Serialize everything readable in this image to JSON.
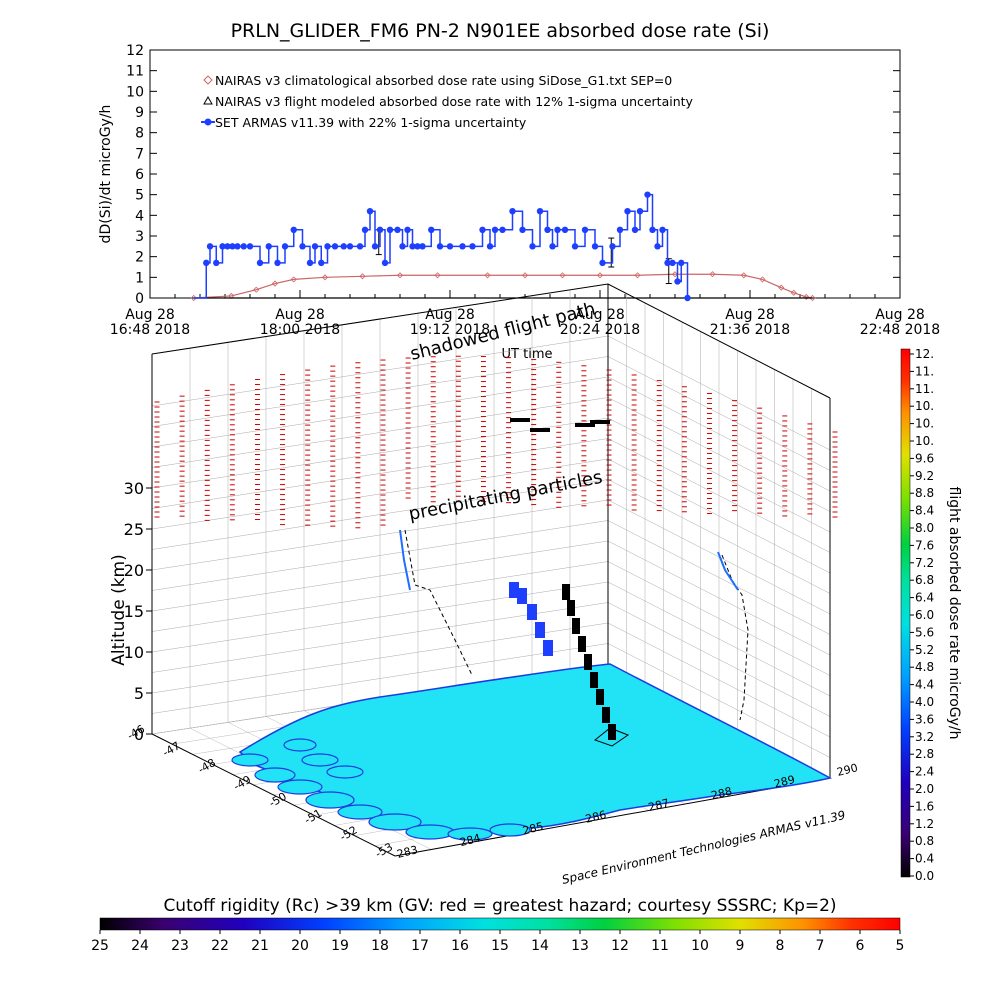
{
  "title": "PRLN_GLIDER_FM6 PN-2 N901EE absorbed dose rate (Si)",
  "chart_data": [
    {
      "type": "line",
      "ylabel": "dD(Si)/dt microGy/h",
      "xlabel": "UT time",
      "ylim": [
        0,
        12
      ],
      "yticks": [
        "0",
        "1",
        "2",
        "3",
        "4",
        "5",
        "6",
        "7",
        "8",
        "9",
        "10",
        "11",
        "12"
      ],
      "xticks": [
        {
          "date": "Aug 28",
          "time": "16:48 2018"
        },
        {
          "date": "Aug 28",
          "time": "18:00 2018"
        },
        {
          "date": "Aug 28",
          "time": "19:12 2018"
        },
        {
          "date": "Aug 28",
          "time": "20:24 2018"
        },
        {
          "date": "Aug 28",
          "time": "21:36 2018"
        },
        {
          "date": "Aug 28",
          "time": "22:48 2018"
        }
      ],
      "xlim_hours": [
        16.8,
        22.8
      ],
      "legend_position": "top-left",
      "series": [
        {
          "name": "NAIRAS v3 climatological absorbed dose rate using SiDose_G1.txt SEP=0",
          "color": "#cc6666",
          "marker": "diamond",
          "x_hours": [
            17.15,
            17.45,
            17.65,
            17.8,
            17.95,
            18.2,
            18.5,
            18.8,
            19.1,
            19.5,
            19.8,
            20.1,
            20.4,
            20.7,
            21.0,
            21.3,
            21.55,
            21.7,
            21.85,
            21.95,
            22.05,
            22.1
          ],
          "values": [
            0,
            0.1,
            0.4,
            0.7,
            0.9,
            1.0,
            1.05,
            1.1,
            1.1,
            1.1,
            1.1,
            1.1,
            1.1,
            1.1,
            1.15,
            1.15,
            1.1,
            0.9,
            0.5,
            0.25,
            0.05,
            0
          ]
        },
        {
          "name": "NAIRAS v3 flight modeled absorbed dose rate with 12% 1-sigma uncertainty",
          "color": "#000000",
          "marker": "triangle",
          "x_hours": [
            17.15,
            17.45,
            17.65,
            17.8,
            17.95,
            18.2,
            18.5,
            18.8,
            19.1,
            19.5,
            19.8,
            20.1,
            20.4,
            20.7,
            21.0,
            21.3,
            21.55,
            21.7,
            21.85,
            21.95,
            22.05,
            22.1
          ],
          "values": [
            0,
            0,
            0,
            0,
            0,
            0,
            0,
            0,
            0,
            0,
            0,
            0,
            0,
            0,
            0,
            0,
            0,
            0,
            0,
            0,
            0,
            0
          ],
          "error_bars": [
            {
              "x_hours": 18.63,
              "value": 2.7,
              "err": 0.6
            },
            {
              "x_hours": 20.49,
              "value": 2.2,
              "err": 0.7
            },
            {
              "x_hours": 20.95,
              "value": 1.3,
              "err": 0.6
            }
          ]
        },
        {
          "name": "SET ARMAS v11.39 with 22% 1-sigma uncertainty",
          "color": "#1f3fff",
          "marker": "filled-circle",
          "x_hours": [
            17.25,
            17.28,
            17.33,
            17.38,
            17.42,
            17.46,
            17.5,
            17.55,
            17.6,
            17.68,
            17.75,
            17.82,
            17.88,
            17.95,
            18.02,
            18.08,
            18.12,
            18.17,
            18.22,
            18.28,
            18.35,
            18.4,
            18.48,
            18.52,
            18.56,
            18.6,
            18.64,
            18.68,
            18.72,
            18.78,
            18.82,
            18.86,
            18.9,
            18.94,
            18.98,
            19.05,
            19.12,
            19.2,
            19.3,
            19.38,
            19.46,
            19.52,
            19.56,
            19.62,
            19.7,
            19.78,
            19.86,
            19.92,
            19.98,
            20.02,
            20.06,
            20.12,
            20.2,
            20.28,
            20.36,
            20.42,
            20.5,
            20.56,
            20.62,
            20.68,
            20.72,
            20.78,
            20.82,
            20.86,
            20.9,
            20.94,
            20.98,
            21.02,
            21.05,
            21.1
          ],
          "values": [
            1.7,
            2.5,
            1.7,
            2.5,
            2.5,
            2.5,
            2.5,
            2.5,
            2.5,
            1.7,
            2.5,
            1.7,
            2.5,
            3.3,
            2.5,
            1.7,
            2.5,
            1.7,
            2.5,
            2.5,
            2.5,
            2.5,
            2.5,
            3.3,
            4.2,
            2.5,
            3.3,
            1.7,
            3.3,
            3.3,
            2.5,
            3.3,
            2.5,
            2.5,
            2.5,
            3.3,
            2.5,
            2.5,
            2.5,
            2.5,
            3.3,
            2.5,
            3.3,
            3.3,
            4.2,
            3.3,
            2.5,
            4.2,
            3.3,
            2.5,
            3.3,
            3.3,
            2.5,
            3.3,
            2.5,
            1.7,
            2.5,
            3.3,
            4.2,
            3.3,
            4.2,
            5.0,
            3.3,
            2.5,
            3.3,
            1.7,
            1.7,
            0.8,
            1.7,
            0
          ]
        }
      ]
    },
    {
      "type": "scatter",
      "subtype": "3d-flight-track",
      "zlabel": "Altitude (km)",
      "zticks": [
        "0",
        "5",
        "10",
        "15",
        "20",
        "25",
        "30"
      ],
      "lat_ticks": [
        "-46",
        "-47",
        "-48",
        "-49",
        "-50",
        "-51",
        "-52",
        "-53"
      ],
      "lon_ticks": [
        "283",
        "284",
        "285",
        "286",
        "287",
        "288",
        "289",
        "290"
      ],
      "annotations": [
        "shadowed flight path",
        "precipitating particles"
      ],
      "credit": "Space Environment Technologies ARMAS v11.39",
      "colorbar": {
        "label": "flight absorbed dose rate microGy/h",
        "ticks": [
          "12.",
          "11.",
          "11.",
          "10.",
          "10.",
          "10.",
          "9.6",
          "9.2",
          "8.8",
          "8.4",
          "8.0",
          "7.6",
          "7.2",
          "6.8",
          "6.4",
          "6.0",
          "5.6",
          "5.2",
          "4.8",
          "4.4",
          "4.0",
          "3.6",
          "3.2",
          "2.8",
          "2.4",
          "2.0",
          "1.6",
          "1.2",
          "0.8",
          "0.4",
          "0.0"
        ]
      }
    },
    {
      "type": "heatmap",
      "subtype": "colorbar",
      "title": "Cutoff rigidity (Rc) >39 km (GV: red = greatest hazard; courtesy SSSRC; Kp=2)",
      "ticks": [
        "25",
        "24",
        "23",
        "22",
        "21",
        "20",
        "19",
        "18",
        "17",
        "16",
        "15",
        "14",
        "13",
        "12",
        "11",
        "10",
        "9",
        "8",
        "7",
        "6",
        "5"
      ]
    }
  ],
  "colors": {
    "rainbow": [
      "#000000",
      "#3a0070",
      "#2000c0",
      "#0040ff",
      "#00a0ff",
      "#00e0e0",
      "#00e0a0",
      "#00d040",
      "#80e000",
      "#e0e000",
      "#ff9000",
      "#ff3000",
      "#ff0000"
    ],
    "map_fill": "#22e3f5",
    "coast": "#1b3de0",
    "track_red": "#cc0000"
  }
}
